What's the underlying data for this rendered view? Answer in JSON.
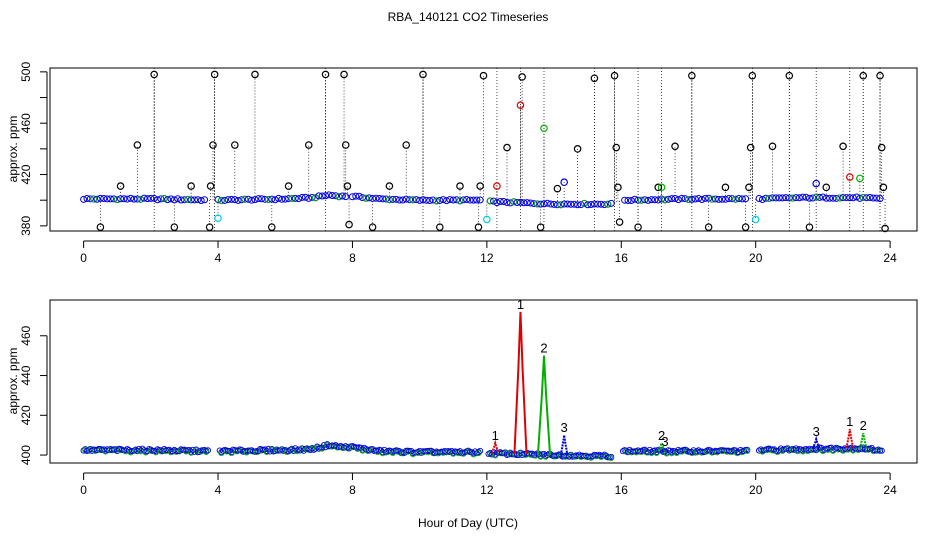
{
  "title": "RBA_140121  CO2 Timeseries",
  "colors": {
    "black": "#000000",
    "red": "#e00000",
    "green": "#00b000",
    "blue": "#0000e0",
    "cyan": "#00d0e0",
    "axis": "#000000"
  },
  "chart_data": [
    {
      "type": "scatter",
      "panel": "top",
      "xlabel": "",
      "ylabel": "approx. ppm",
      "xlim": [
        -1,
        24.8
      ],
      "ylim": [
        376,
        503
      ],
      "xticks": [
        0,
        4,
        8,
        12,
        16,
        20,
        24
      ],
      "xtick_labels": [
        "0",
        "4",
        "8",
        "12",
        "16",
        "20",
        "24"
      ],
      "yticks": [
        380,
        400,
        420,
        440,
        460,
        480,
        500
      ],
      "ytick_labels": [
        "380",
        "",
        "420",
        "",
        "460",
        "",
        "500"
      ],
      "baseline": [
        [
          0.0,
          401
        ],
        [
          2.0,
          401
        ],
        [
          4.0,
          400
        ],
        [
          6.0,
          401
        ],
        [
          6.8,
          402
        ],
        [
          7.3,
          404
        ],
        [
          7.7,
          403
        ],
        [
          8.0,
          403
        ],
        [
          8.8,
          401
        ],
        [
          10.0,
          400
        ],
        [
          11.9,
          400
        ],
        [
          12.0,
          399
        ],
        [
          13.0,
          398
        ],
        [
          14.0,
          397
        ],
        [
          15.7,
          397
        ],
        [
          16.0,
          400
        ],
        [
          18.0,
          401
        ],
        [
          19.8,
          401
        ],
        [
          20.0,
          401
        ],
        [
          21.5,
          402
        ],
        [
          23.0,
          402
        ],
        [
          23.8,
          401
        ]
      ],
      "gaps": [
        [
          3.7,
          4.0
        ],
        [
          7.8,
          7.95
        ],
        [
          11.85,
          12.05
        ],
        [
          15.75,
          16.05
        ],
        [
          19.8,
          20.1
        ]
      ],
      "vlines": [
        2.1,
        3.9,
        7.2,
        10.1,
        12.3,
        13.0,
        13.7,
        15.2,
        15.8,
        16.5,
        17.2,
        18.1,
        19.9,
        21.0,
        21.8,
        22.8,
        23.2,
        23.7
      ],
      "spikes": [
        {
          "x": 0.5,
          "y": 379,
          "color": "black"
        },
        {
          "x": 1.1,
          "y": 411,
          "color": "black"
        },
        {
          "x": 1.6,
          "y": 443,
          "color": "black"
        },
        {
          "x": 2.1,
          "y": 498,
          "color": "black"
        },
        {
          "x": 2.7,
          "y": 379,
          "color": "black"
        },
        {
          "x": 3.2,
          "y": 411,
          "color": "black"
        },
        {
          "x": 3.75,
          "y": 379,
          "color": "black"
        },
        {
          "x": 3.78,
          "y": 411,
          "color": "black"
        },
        {
          "x": 3.85,
          "y": 443,
          "color": "black"
        },
        {
          "x": 3.9,
          "y": 498,
          "color": "black"
        },
        {
          "x": 4.0,
          "y": 386,
          "color": "cyan"
        },
        {
          "x": 4.5,
          "y": 443,
          "color": "black"
        },
        {
          "x": 5.1,
          "y": 498,
          "color": "black"
        },
        {
          "x": 5.6,
          "y": 379,
          "color": "black"
        },
        {
          "x": 6.1,
          "y": 411,
          "color": "black"
        },
        {
          "x": 6.7,
          "y": 443,
          "color": "black"
        },
        {
          "x": 7.2,
          "y": 498,
          "color": "black"
        },
        {
          "x": 7.75,
          "y": 498,
          "color": "black"
        },
        {
          "x": 7.8,
          "y": 443,
          "color": "black"
        },
        {
          "x": 7.85,
          "y": 411,
          "color": "black"
        },
        {
          "x": 7.9,
          "y": 381,
          "color": "black"
        },
        {
          "x": 8.6,
          "y": 379,
          "color": "black"
        },
        {
          "x": 9.1,
          "y": 411,
          "color": "black"
        },
        {
          "x": 9.6,
          "y": 443,
          "color": "black"
        },
        {
          "x": 10.1,
          "y": 498,
          "color": "black"
        },
        {
          "x": 10.6,
          "y": 379,
          "color": "black"
        },
        {
          "x": 11.2,
          "y": 411,
          "color": "black"
        },
        {
          "x": 11.75,
          "y": 379,
          "color": "black"
        },
        {
          "x": 11.8,
          "y": 411,
          "color": "black"
        },
        {
          "x": 11.9,
          "y": 497,
          "color": "black"
        },
        {
          "x": 12.0,
          "y": 385,
          "color": "cyan"
        },
        {
          "x": 12.3,
          "y": 411,
          "color": "red"
        },
        {
          "x": 12.6,
          "y": 441,
          "color": "black"
        },
        {
          "x": 13.0,
          "y": 474,
          "color": "red"
        },
        {
          "x": 13.05,
          "y": 496,
          "color": "black"
        },
        {
          "x": 13.6,
          "y": 379,
          "color": "black"
        },
        {
          "x": 13.7,
          "y": 456,
          "color": "green"
        },
        {
          "x": 14.1,
          "y": 409,
          "color": "black"
        },
        {
          "x": 14.3,
          "y": 414,
          "color": "blue"
        },
        {
          "x": 14.7,
          "y": 440,
          "color": "black"
        },
        {
          "x": 15.2,
          "y": 495,
          "color": "black"
        },
        {
          "x": 15.8,
          "y": 497,
          "color": "black"
        },
        {
          "x": 15.85,
          "y": 441,
          "color": "black"
        },
        {
          "x": 15.9,
          "y": 410,
          "color": "black"
        },
        {
          "x": 15.95,
          "y": 383,
          "color": "black"
        },
        {
          "x": 16.5,
          "y": 379,
          "color": "black"
        },
        {
          "x": 17.1,
          "y": 410,
          "color": "black"
        },
        {
          "x": 17.2,
          "y": 410,
          "color": "green"
        },
        {
          "x": 17.6,
          "y": 442,
          "color": "black"
        },
        {
          "x": 18.1,
          "y": 497,
          "color": "black"
        },
        {
          "x": 18.6,
          "y": 379,
          "color": "black"
        },
        {
          "x": 19.1,
          "y": 410,
          "color": "black"
        },
        {
          "x": 19.7,
          "y": 379,
          "color": "black"
        },
        {
          "x": 19.8,
          "y": 410,
          "color": "black"
        },
        {
          "x": 19.85,
          "y": 441,
          "color": "black"
        },
        {
          "x": 19.9,
          "y": 497,
          "color": "black"
        },
        {
          "x": 20.0,
          "y": 385,
          "color": "cyan"
        },
        {
          "x": 20.5,
          "y": 442,
          "color": "black"
        },
        {
          "x": 21.0,
          "y": 497,
          "color": "black"
        },
        {
          "x": 21.6,
          "y": 379,
          "color": "black"
        },
        {
          "x": 21.8,
          "y": 413,
          "color": "blue"
        },
        {
          "x": 22.1,
          "y": 410,
          "color": "black"
        },
        {
          "x": 22.6,
          "y": 442,
          "color": "black"
        },
        {
          "x": 22.8,
          "y": 418,
          "color": "red"
        },
        {
          "x": 23.1,
          "y": 417,
          "color": "green"
        },
        {
          "x": 23.2,
          "y": 497,
          "color": "black"
        },
        {
          "x": 23.7,
          "y": 497,
          "color": "black"
        },
        {
          "x": 23.75,
          "y": 441,
          "color": "black"
        },
        {
          "x": 23.8,
          "y": 410,
          "color": "black"
        },
        {
          "x": 23.85,
          "y": 378,
          "color": "black"
        }
      ]
    },
    {
      "type": "line",
      "panel": "bottom",
      "xlabel": "Hour of Day (UTC)",
      "ylabel": "approx. ppm",
      "xlim": [
        -1,
        24.8
      ],
      "ylim": [
        396,
        478
      ],
      "xticks": [
        0,
        4,
        8,
        12,
        16,
        20,
        24
      ],
      "xtick_labels": [
        "0",
        "4",
        "8",
        "12",
        "16",
        "20",
        "24"
      ],
      "yticks": [
        400,
        420,
        440,
        460
      ],
      "ytick_labels": [
        "400",
        "420",
        "440",
        "460"
      ],
      "baseline": [
        [
          0.0,
          402.5
        ],
        [
          2.0,
          402.5
        ],
        [
          3.7,
          402
        ],
        [
          4.0,
          402
        ],
        [
          6.0,
          402.5
        ],
        [
          6.8,
          403
        ],
        [
          7.3,
          405
        ],
        [
          7.7,
          404
        ],
        [
          8.0,
          404
        ],
        [
          8.8,
          402
        ],
        [
          10.0,
          401.5
        ],
        [
          11.9,
          401.5
        ],
        [
          12.0,
          401
        ],
        [
          13.0,
          400.5
        ],
        [
          14.0,
          400
        ],
        [
          15.7,
          399.5
        ],
        [
          16.0,
          402
        ],
        [
          18.0,
          402
        ],
        [
          19.8,
          402
        ],
        [
          20.0,
          402.5
        ],
        [
          21.5,
          403
        ],
        [
          23.0,
          403.5
        ],
        [
          23.8,
          402.5
        ]
      ],
      "gaps": [
        [
          3.7,
          4.0
        ],
        [
          11.85,
          12.05
        ],
        [
          15.75,
          16.05
        ],
        [
          19.8,
          20.1
        ]
      ],
      "peaks": [
        {
          "x": 12.25,
          "y": 406,
          "label": "1",
          "color": "red"
        },
        {
          "x": 13.0,
          "y": 472,
          "label": "1",
          "color": "red"
        },
        {
          "x": 13.7,
          "y": 450,
          "label": "2",
          "color": "green"
        },
        {
          "x": 14.3,
          "y": 410,
          "label": "3",
          "color": "blue"
        },
        {
          "x": 17.2,
          "y": 406,
          "label": "2",
          "color": "green"
        },
        {
          "x": 17.3,
          "y": 403,
          "label": "3",
          "color": "blue"
        },
        {
          "x": 21.8,
          "y": 408,
          "label": "3",
          "color": "blue"
        },
        {
          "x": 22.8,
          "y": 413,
          "label": "1",
          "color": "red"
        },
        {
          "x": 23.2,
          "y": 411,
          "label": "2",
          "color": "green"
        }
      ]
    }
  ]
}
